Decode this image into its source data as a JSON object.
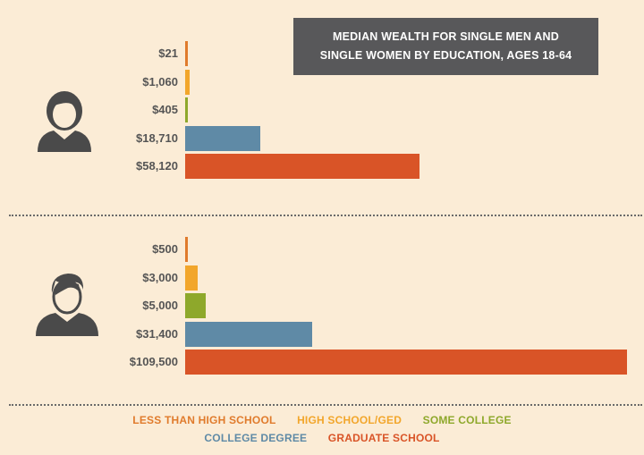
{
  "chart_data": {
    "type": "bar",
    "orientation": "horizontal",
    "title": "MEDIAN WEALTH FOR SINGLE MEN AND\nSINGLE WOMEN BY EDUCATION, AGES 18-64",
    "categories": [
      "LESS THAN HIGH SCHOOL",
      "HIGH SCHOOL/GED",
      "SOME COLLEGE",
      "COLLEGE DEGREE",
      "GRADUATE SCHOOL"
    ],
    "colors": [
      "#e07b2c",
      "#f2a62b",
      "#8ea82b",
      "#5f8aa6",
      "#d95427"
    ],
    "xlim": [
      0,
      109500
    ],
    "groups": [
      {
        "icon": "woman-icon",
        "values": [
          21,
          1060,
          405,
          18710,
          58120
        ],
        "labels": [
          "$21",
          "$1,060",
          "$405",
          "$18,710",
          "$58,120"
        ]
      },
      {
        "icon": "man-icon",
        "values": [
          500,
          3000,
          5000,
          31400,
          109500
        ],
        "labels": [
          "$500",
          "$3,000",
          "$5,000",
          "$31,400",
          "$109,500"
        ]
      }
    ],
    "legend_position": "bottom"
  }
}
